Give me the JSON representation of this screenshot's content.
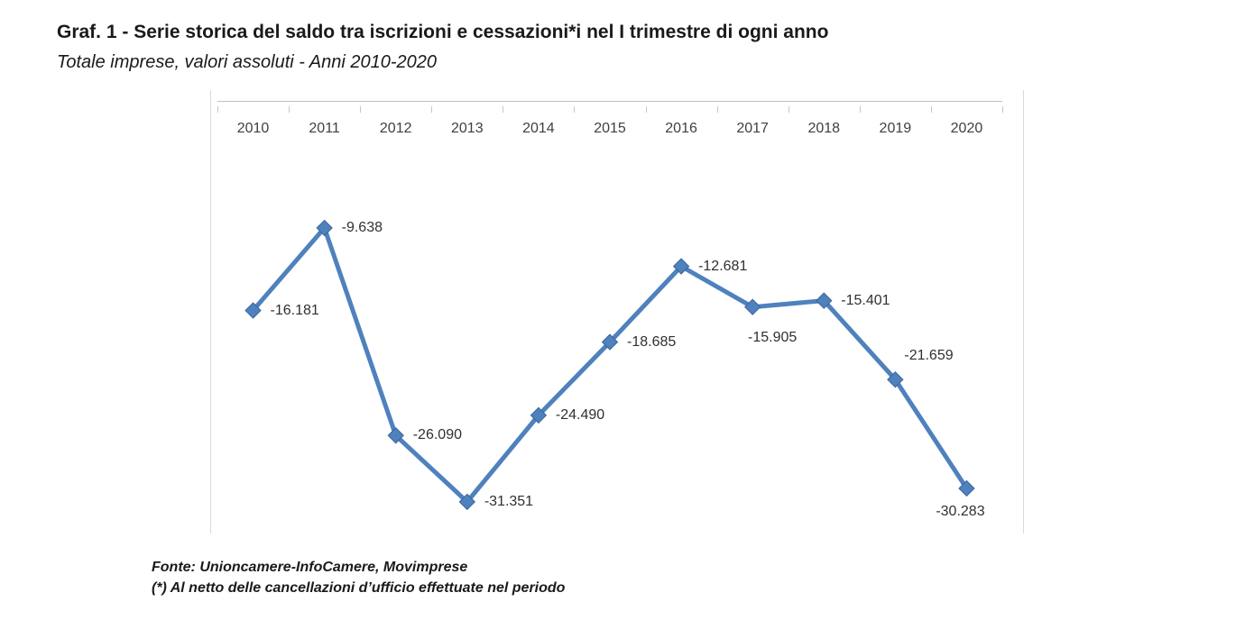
{
  "figure": {
    "title": "Graf. 1 - Serie storica del saldo tra iscrizioni e cessazioni*i nel I trimestre di ogni anno",
    "subtitle": "Totale imprese, valori assoluti - Anni 2010-2020",
    "source": "Fonte: Unioncamere-InfoCamere, Movimprese",
    "note": "(*) Al netto delle cancellazioni d’ufficio effettuate nel periodo"
  },
  "chart_data": {
    "type": "line",
    "title": "Graf. 1 - Serie storica del saldo tra iscrizioni e cessazioni*i nel I trimestre di ogni anno",
    "subtitle": "Totale imprese, valori assoluti - Anni 2010-2020",
    "categories": [
      "2010",
      "2011",
      "2012",
      "2013",
      "2014",
      "2015",
      "2016",
      "2017",
      "2018",
      "2019",
      "2020"
    ],
    "values": [
      -16181,
      -9638,
      -26090,
      -31351,
      -24490,
      -18685,
      -12681,
      -15905,
      -15401,
      -21659,
      -30283
    ],
    "data_labels": [
      "-16.181",
      "-9.638",
      "-26.090",
      "-31.351",
      "-24.490",
      "-18.685",
      "-12.681",
      "-15.905",
      "-15.401",
      "-21.659",
      "-30.283"
    ],
    "label_placement": [
      "right",
      "right",
      "right",
      "right",
      "right",
      "right",
      "right",
      "below-right",
      "right",
      "above-right",
      "below"
    ],
    "ylim": [
      -35000,
      0
    ],
    "x_axis_position": "top",
    "grid": false,
    "legend": "none",
    "line_color": "#4f81bd",
    "marker": "diamond",
    "marker_border_color": "#3a66a0",
    "axis_color": "#c0c0c0"
  }
}
